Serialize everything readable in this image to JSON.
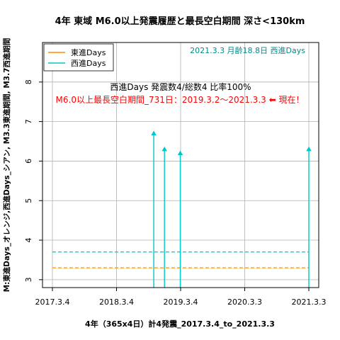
{
  "chart_data": {
    "type": "line",
    "title": "4年 東域 M6.0以上発震履歴と最長空白期間 深さ<130km",
    "xlabel": "4年（365x4日）計4発震_2017.3.4_to_2021.3.3",
    "ylabel": "M:東進Days_オレンジ,西進Days_シアン, M3.3東進期間, M3.7西進期間",
    "x_ticks": [
      "2017.3.4",
      "2018.3.4",
      "2019.3.4",
      "2020.3.3",
      "2021.3.3"
    ],
    "y_ticks": [
      3,
      4,
      5,
      6,
      7,
      8
    ],
    "ylim": [
      2.8,
      9.0
    ],
    "grid": true,
    "legend_position": "top-left",
    "legend": [
      {
        "name": "東進Days",
        "color": "#ff8c00"
      },
      {
        "name": "西進Days",
        "color": "#00c8c8"
      }
    ],
    "series": [
      {
        "name": "東進Days",
        "color": "#ff8c00",
        "style": "dashed",
        "value": 3.3
      },
      {
        "name": "西進Days",
        "color": "#00c8c8",
        "style": "dashed",
        "value": 3.7
      }
    ],
    "events": [
      {
        "x": "2018.10.2",
        "magnitude": 6.7
      },
      {
        "x": "2018.12.2",
        "magnitude": 6.3
      },
      {
        "x": "2019.3.2",
        "magnitude": 6.2
      },
      {
        "x": "2021.3.3",
        "magnitude": 6.3
      }
    ],
    "annotations": {
      "moon": "2021.3.3 月齢18.8日 西進Days",
      "stats": "西進Days 発震数4/総数4 比率100%",
      "longest_gap": "M6.0以上最長空白期間_731日：2019.3.2〜2021.3.3 ⬅ 現在！"
    },
    "colors": {
      "east": "#ff8c00",
      "west": "#00c8c8",
      "moon_text": "#008b8b",
      "gap_text": "#ff0000",
      "grid": "#b0b0b0"
    }
  }
}
